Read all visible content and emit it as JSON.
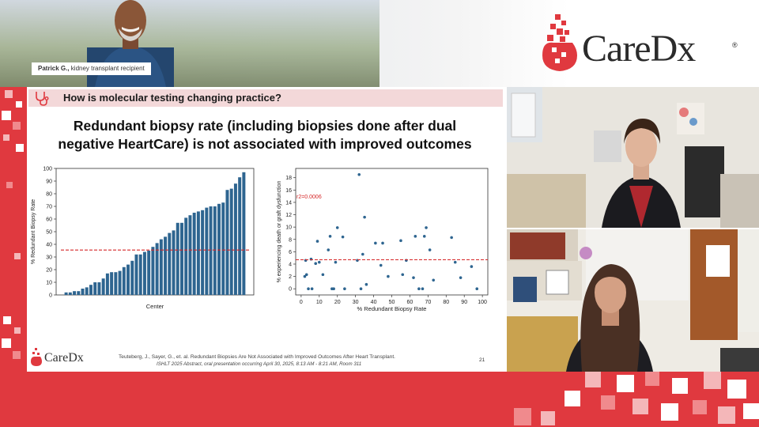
{
  "banner": {
    "caption_name": "Patrick G.,",
    "caption_role": " kidney transplant recipient",
    "logo_text": "CareDx",
    "logo_reg": "®"
  },
  "slide": {
    "question": "How is molecular testing changing practice?",
    "headline_line1": "Redundant biopsy rate (including biopsies done after dual",
    "headline_line2": "negative HeartCare) is not associated with improved outcomes",
    "footer_logo": "CareDx",
    "citation_line1": "Teuteberg, J., Sayer, G., et. al. Redundant Biopsies Are Not Associated with Improved Outcomes After Heart Transplant.",
    "citation_line2": "ISHLT 2025 Abstract, oral presentation occurring April 30, 2025, 8:13 AM - 8:21 AM, Room 311",
    "page_number": "21"
  },
  "colors": {
    "brand_red": "#e0393f",
    "bar_blue": "#2e6590",
    "point_blue": "#2e6590",
    "ref_line_red": "#d62728",
    "question_bg": "#f3d8d9"
  },
  "chart_data": [
    {
      "type": "bar",
      "xlabel": "Center",
      "ylabel": "% Redundant Biopsy Rate",
      "ylim": [
        0,
        100
      ],
      "yticks": [
        0,
        10,
        20,
        30,
        40,
        50,
        60,
        70,
        80,
        90,
        100
      ],
      "values": [
        2,
        2,
        3,
        3,
        5,
        6,
        8,
        10,
        10,
        13,
        17,
        18,
        18,
        19,
        22,
        24,
        27,
        32,
        32,
        34,
        35,
        38,
        41,
        44,
        46,
        49,
        51,
        57,
        57,
        61,
        63,
        65,
        66,
        67,
        69,
        70,
        70,
        72,
        73,
        83,
        84,
        88,
        93,
        97
      ],
      "reference_line": 35.5
    },
    {
      "type": "scatter",
      "xlabel": "% Redundant Biopsy Rate",
      "ylabel": "% experiencing death or graft dysfunction",
      "annotation": "r2=0.0006",
      "xlim": [
        -3,
        103
      ],
      "ylim": [
        -1,
        19.5
      ],
      "xticks": [
        0,
        10,
        20,
        30,
        40,
        50,
        60,
        70,
        80,
        90,
        100
      ],
      "yticks": [
        0,
        2,
        4,
        6,
        8,
        10,
        12,
        14,
        16,
        18
      ],
      "points": [
        [
          2,
          2
        ],
        [
          2.5,
          4.6
        ],
        [
          3,
          2.3
        ],
        [
          4,
          0
        ],
        [
          5.5,
          4.8
        ],
        [
          6,
          0
        ],
        [
          8,
          4.1
        ],
        [
          9,
          7.7
        ],
        [
          10,
          4.3
        ],
        [
          12,
          2.3
        ],
        [
          15,
          6.3
        ],
        [
          16,
          8.5
        ],
        [
          17,
          0
        ],
        [
          18,
          0
        ],
        [
          19,
          4.3
        ],
        [
          20,
          9.9
        ],
        [
          23,
          8.4
        ],
        [
          24,
          0
        ],
        [
          31,
          4.6
        ],
        [
          32,
          18.5
        ],
        [
          33,
          0
        ],
        [
          34,
          5.6
        ],
        [
          35,
          11.6
        ],
        [
          36,
          0.7
        ],
        [
          41,
          7.4
        ],
        [
          44,
          3.8
        ],
        [
          45,
          7.4
        ],
        [
          48,
          2
        ],
        [
          55,
          7.8
        ],
        [
          56,
          2.3
        ],
        [
          58,
          4.6
        ],
        [
          62,
          1.8
        ],
        [
          63,
          8.5
        ],
        [
          65,
          0
        ],
        [
          67,
          0
        ],
        [
          68,
          8.5
        ],
        [
          69,
          9.9
        ],
        [
          71,
          6.3
        ],
        [
          73,
          1.4
        ],
        [
          83,
          8.3
        ],
        [
          85,
          4.3
        ],
        [
          88,
          1.8
        ],
        [
          94,
          3.6
        ],
        [
          97,
          0
        ]
      ],
      "reference_line": 4.7
    }
  ]
}
